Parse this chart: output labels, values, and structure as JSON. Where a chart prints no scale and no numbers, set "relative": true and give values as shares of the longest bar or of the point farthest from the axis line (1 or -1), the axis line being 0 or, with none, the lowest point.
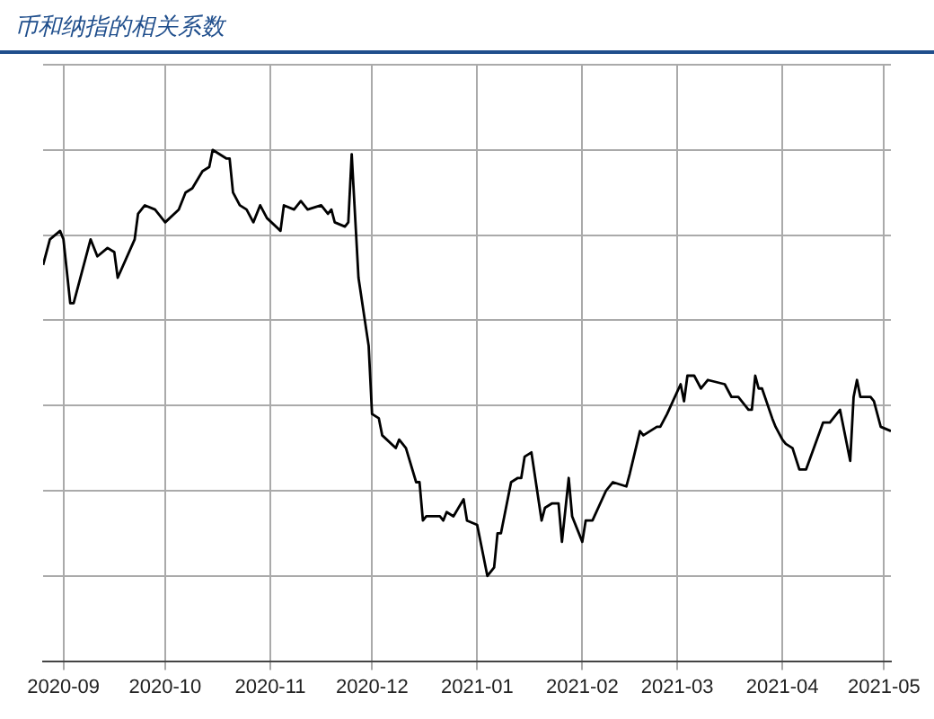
{
  "chart_data": {
    "type": "line",
    "title": "币和纳指的相关系数",
    "relative": true,
    "grid": true,
    "legend": false,
    "marker": "none",
    "line_style": "solid",
    "xlim": [
      "2020-08-26",
      "2021-05-03"
    ],
    "xticks": [
      "2020-09",
      "2020-10",
      "2020-11",
      "2020-12",
      "2021-01",
      "2021-02",
      "2021-03",
      "2021-04",
      "2021-05"
    ],
    "series": [
      {
        "color": "#000000",
        "x": [
          "2020-08-26",
          "2020-08-28",
          "2020-08-31",
          "2020-09-01",
          "2020-09-03",
          "2020-09-04",
          "2020-09-09",
          "2020-09-11",
          "2020-09-14",
          "2020-09-16",
          "2020-09-17",
          "2020-09-22",
          "2020-09-23",
          "2020-09-25",
          "2020-09-28",
          "2020-10-01",
          "2020-10-05",
          "2020-10-07",
          "2020-10-09",
          "2020-10-12",
          "2020-10-14",
          "2020-10-15",
          "2020-10-17",
          "2020-10-19",
          "2020-10-20",
          "2020-10-21",
          "2020-10-23",
          "2020-10-25",
          "2020-10-27",
          "2020-10-29",
          "2020-10-31",
          "2020-11-04",
          "2020-11-05",
          "2020-11-08",
          "2020-11-10",
          "2020-11-12",
          "2020-11-16",
          "2020-11-18",
          "2020-11-19",
          "2020-11-20",
          "2020-11-23",
          "2020-11-24",
          "2020-11-25",
          "2020-11-27",
          "2020-11-30",
          "2020-12-01",
          "2020-12-03",
          "2020-12-04",
          "2020-12-08",
          "2020-12-09",
          "2020-12-11",
          "2020-12-14",
          "2020-12-15",
          "2020-12-16",
          "2020-12-17",
          "2020-12-21",
          "2020-12-22",
          "2020-12-23",
          "2020-12-25",
          "2020-12-28",
          "2020-12-29",
          "2021-01-01",
          "2021-01-04",
          "2021-01-06",
          "2021-01-07",
          "2021-01-08",
          "2021-01-11",
          "2021-01-13",
          "2021-01-14",
          "2021-01-15",
          "2021-01-17",
          "2021-01-20",
          "2021-01-21",
          "2021-01-23",
          "2021-01-25",
          "2021-01-26",
          "2021-01-28",
          "2021-01-29",
          "2021-02-01",
          "2021-02-02",
          "2021-02-04",
          "2021-02-08",
          "2021-02-10",
          "2021-02-14",
          "2021-02-15",
          "2021-02-18",
          "2021-02-19",
          "2021-02-23",
          "2021-02-24",
          "2021-02-26",
          "2021-03-02",
          "2021-03-03",
          "2021-03-04",
          "2021-03-06",
          "2021-03-08",
          "2021-03-10",
          "2021-03-15",
          "2021-03-17",
          "2021-03-19",
          "2021-03-22",
          "2021-03-23",
          "2021-03-24",
          "2021-03-25",
          "2021-03-26",
          "2021-03-29",
          "2021-03-30",
          "2021-04-01",
          "2021-04-02",
          "2021-04-04",
          "2021-04-06",
          "2021-04-08",
          "2021-04-13",
          "2021-04-15",
          "2021-04-18",
          "2021-04-21",
          "2021-04-22",
          "2021-04-23",
          "2021-04-24",
          "2021-04-27",
          "2021-04-28",
          "2021-04-30",
          "2021-05-03"
        ],
        "values": [
          0.73,
          0.79,
          0.81,
          0.79,
          0.64,
          0.64,
          0.79,
          0.75,
          0.77,
          0.76,
          0.7,
          0.79,
          0.85,
          0.87,
          0.86,
          0.83,
          0.86,
          0.9,
          0.91,
          0.95,
          0.96,
          1.0,
          0.99,
          0.98,
          0.98,
          0.9,
          0.87,
          0.86,
          0.83,
          0.87,
          0.84,
          0.81,
          0.87,
          0.86,
          0.88,
          0.86,
          0.87,
          0.85,
          0.86,
          0.83,
          0.82,
          0.83,
          0.99,
          0.7,
          0.54,
          0.38,
          0.37,
          0.33,
          0.3,
          0.32,
          0.3,
          0.22,
          0.22,
          0.13,
          0.14,
          0.14,
          0.13,
          0.15,
          0.14,
          0.18,
          0.13,
          0.12,
          0.0,
          0.02,
          0.1,
          0.1,
          0.22,
          0.23,
          0.23,
          0.28,
          0.29,
          0.13,
          0.16,
          0.17,
          0.17,
          0.08,
          0.23,
          0.14,
          0.08,
          0.13,
          0.13,
          0.2,
          0.22,
          0.21,
          0.24,
          0.34,
          0.33,
          0.35,
          0.35,
          0.38,
          0.45,
          0.41,
          0.47,
          0.47,
          0.44,
          0.46,
          0.45,
          0.42,
          0.42,
          0.39,
          0.39,
          0.47,
          0.44,
          0.44,
          0.37,
          0.35,
          0.32,
          0.31,
          0.3,
          0.25,
          0.25,
          0.36,
          0.36,
          0.39,
          0.27,
          0.42,
          0.46,
          0.42,
          0.42,
          0.41,
          0.35,
          0.34
        ]
      }
    ]
  }
}
